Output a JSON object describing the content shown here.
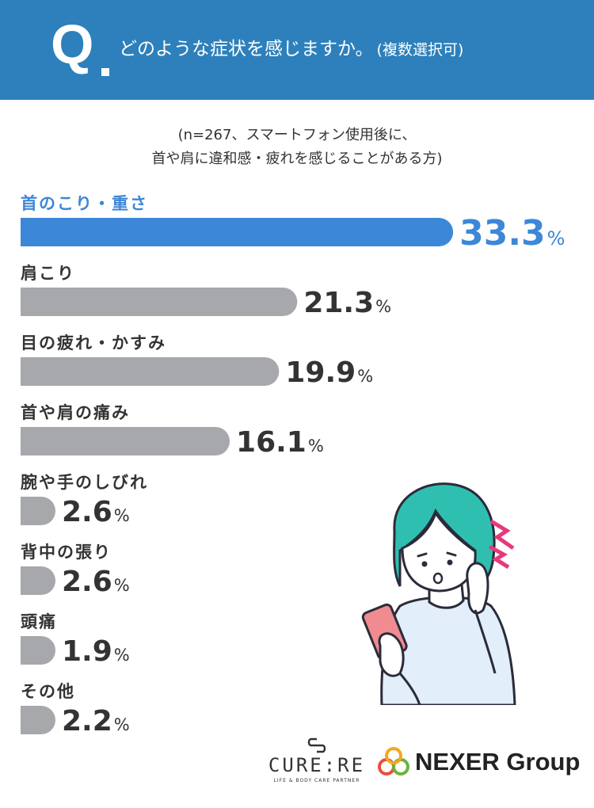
{
  "header": {
    "q_letter": "Q",
    "question": "どのような症状を感じますか。",
    "question_note": "(複数選択可)"
  },
  "subtitle": {
    "line1": "(n=267、スマートフォン使用後に、",
    "line2": "首や肩に違和感・疲れを感じることがある方)"
  },
  "colors": {
    "header_bg": "#2d80bb",
    "highlight_bar": "#3d87d8",
    "normal_bar": "#a7a8ac",
    "highlight_text": "#3d87d8",
    "normal_text": "#333333"
  },
  "chart_data": {
    "type": "bar",
    "orientation": "horizontal",
    "unit": "%",
    "categories": [
      "首のこり・重さ",
      "肩こり",
      "目の疲れ・かすみ",
      "首や肩の痛み",
      "腕や手のしびれ",
      "背中の張り",
      "頭痛",
      "その他"
    ],
    "values": [
      33.3,
      21.3,
      19.9,
      16.1,
      2.6,
      2.6,
      1.9,
      2.2
    ],
    "value_labels": [
      "33.3",
      "21.3",
      "19.9",
      "16.1",
      "2.6",
      "2.6",
      "1.9",
      "2.2"
    ],
    "highlight_index": 0
  },
  "illustration": {
    "icon": "woman-with-smartphone-neck-pain-illustration"
  },
  "logos": {
    "cure_mark": "cure-re-logo-icon",
    "cure_text": "CURE:RE",
    "cure_tagline": "LIFE & BODY CARE PARTNER",
    "nexer_mark": "nexer-rings-logo-icon",
    "nexer_text": "NEXER Group"
  }
}
